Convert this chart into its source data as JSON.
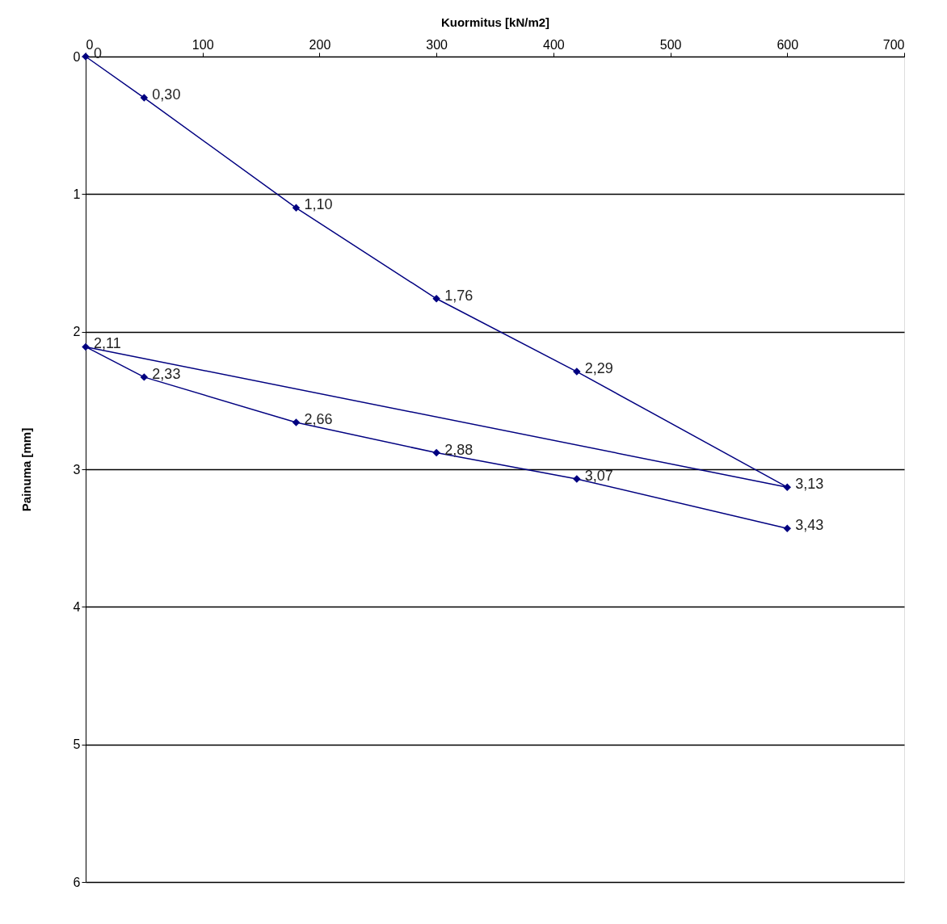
{
  "chart_data": {
    "type": "line",
    "xlabel": "Kuormitus [kN/m2]",
    "ylabel": "Painuma [mm]",
    "x": [
      0,
      50,
      180,
      300,
      420,
      600,
      0,
      50,
      180,
      300,
      420,
      600
    ],
    "series": [
      {
        "color": "#000080",
        "values": [
          0,
          0.3,
          1.1,
          1.76,
          2.29,
          3.13,
          2.11,
          2.33,
          2.66,
          2.88,
          3.07,
          3.43
        ],
        "value_labels": [
          "0",
          "0,30",
          "1,10",
          "1,76",
          "2,29",
          "3,13",
          "2,11",
          "2,33",
          "2,66",
          "2,88",
          "3,07",
          "3,43"
        ]
      }
    ],
    "xlim": [
      0,
      700
    ],
    "xticks": [
      0,
      100,
      200,
      300,
      400,
      500,
      600,
      700
    ],
    "ylim": [
      6,
      0
    ],
    "yticks": [
      0,
      1,
      2,
      3,
      4,
      5,
      6
    ],
    "grid": "y",
    "marker": "diamond",
    "line_style": "solid"
  }
}
